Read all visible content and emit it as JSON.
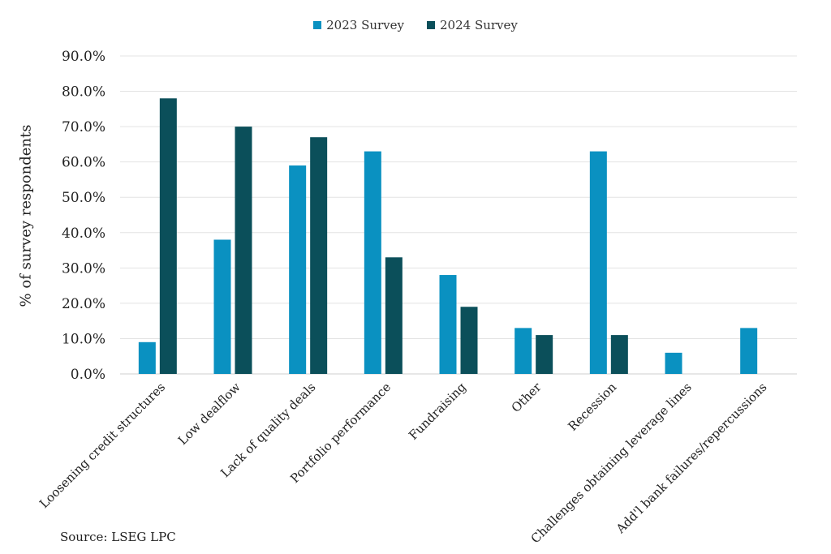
{
  "chart_data": {
    "type": "bar",
    "title": "",
    "xlabel": "",
    "ylabel": "% of survey respondents",
    "ylim": [
      0,
      90
    ],
    "yticks": [
      "0.0%",
      "10.0%",
      "20.0%",
      "30.0%",
      "40.0%",
      "50.0%",
      "60.0%",
      "70.0%",
      "80.0%",
      "90.0%"
    ],
    "grid": true,
    "legend": "top-center",
    "categories": [
      "Loosening credit structures",
      "Low dealflow",
      "Lack of quality deals",
      "Portfolio performance",
      "Fundraising",
      "Other",
      "Recession",
      "Challenges obtaining leverage lines",
      "Add'l bank failures/repercussions"
    ],
    "series": [
      {
        "name": "2023 Survey",
        "color": "#0a91c1",
        "values": [
          9,
          38,
          59,
          63,
          28,
          13,
          63,
          6,
          13
        ]
      },
      {
        "name": "2024 Survey",
        "color": "#0b4f5a",
        "values": [
          78,
          70,
          67,
          33,
          19,
          11,
          11,
          0,
          0
        ]
      }
    ]
  },
  "footer": {
    "source": "Source: LSEG LPC"
  }
}
